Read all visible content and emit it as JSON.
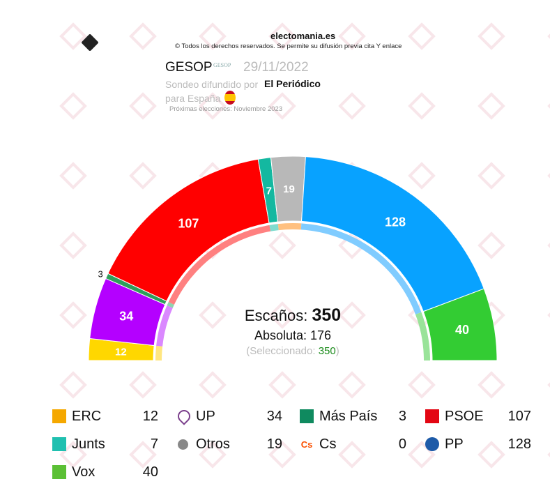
{
  "header": {
    "site": "electomania.es",
    "copyright": "© Todos los derechos reservados. Se permite su difusión previa cita Y enlace",
    "pollster": "GESOP",
    "pollster_logo_text": "GESOP",
    "date": "29/11/2022",
    "published_by_label": "Sondeo difundido por",
    "publisher": "El Periódico",
    "scope": "para España",
    "next_elections": "Próximas elecciones: Noviembre 2023",
    "watermark": "Electomania"
  },
  "center": {
    "seats_label": "Escaños:",
    "seats_total": "350",
    "majority_label": "Absoluta: 176",
    "selected_open": "(Seleccionado: ",
    "selected_value": "350",
    "selected_close": ")"
  },
  "chart_data": {
    "type": "pie",
    "subtype": "parliament-semicircle",
    "total": 350,
    "majority": 176,
    "segments": [
      {
        "name": "ERC",
        "value": 12,
        "color": "#FFD700"
      },
      {
        "name": "UP",
        "value": 34,
        "color": "#B400FF"
      },
      {
        "name": "Más País",
        "value": 3,
        "color": "#2E9E5B"
      },
      {
        "name": "PSOE",
        "value": 107,
        "color": "#FF0000"
      },
      {
        "name": "Junts",
        "value": 7,
        "color": "#14B8A0"
      },
      {
        "name": "Otros",
        "value": 19,
        "color": "#B8B8B8"
      },
      {
        "name": "PP",
        "value": 128,
        "color": "#08A2FF"
      },
      {
        "name": "Vox",
        "value": 40,
        "color": "#33CC33"
      }
    ],
    "inner_ring_colors": [
      "#FFE680",
      "#DA88FF",
      "#8FD4AE",
      "#FF8080",
      "#80DCCF",
      "#FFC080",
      "#80CCFF",
      "#99E399"
    ]
  },
  "legend": [
    {
      "name": "ERC",
      "value": "12",
      "icon": "erc-logo",
      "color": "#F5A800"
    },
    {
      "name": "UP",
      "value": "34",
      "icon": "heart-logo",
      "color": "#7B3F8C"
    },
    {
      "name": "Más País",
      "value": "3",
      "icon": "mas-pais-logo",
      "color": "#0F8A5F"
    },
    {
      "name": "PSOE",
      "value": "107",
      "icon": "psoe-logo",
      "color": "#E30613"
    },
    {
      "name": "Junts",
      "value": "7",
      "icon": "junts-logo",
      "color": "#20C0B0"
    },
    {
      "name": "Otros",
      "value": "19",
      "icon": "circle-icon",
      "color": "#888888"
    },
    {
      "name": "Cs",
      "value": "0",
      "icon": "cs-logo",
      "color": "#FA5000"
    },
    {
      "name": "PP",
      "value": "128",
      "icon": "pp-logo",
      "color": "#1D5AA8"
    },
    {
      "name": "Vox",
      "value": "40",
      "icon": "vox-logo",
      "color": "#5BC035"
    }
  ]
}
